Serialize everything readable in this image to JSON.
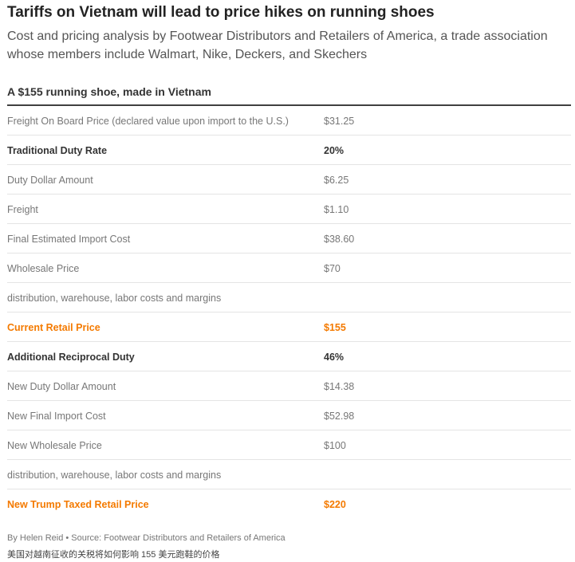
{
  "header": {
    "title": "Tariffs on Vietnam will lead to price hikes on running shoes",
    "subtitle": "Cost and pricing analysis by Footwear Distributors and Retailers of America, a trade association whose members include Walmart, Nike, Deckers, and Skechers"
  },
  "table": {
    "title": "A $155 running shoe, made in Vietnam",
    "accent_color": "#f47a00",
    "rows": [
      {
        "label": "Freight On Board Price (declared value upon import to the U.S.)",
        "value": "$31.25",
        "style": "normal"
      },
      {
        "label": "Traditional Duty Rate",
        "value": "20%",
        "style": "bold"
      },
      {
        "label": "Duty Dollar Amount",
        "value": "$6.25",
        "style": "normal"
      },
      {
        "label": "Freight",
        "value": "$1.10",
        "style": "normal"
      },
      {
        "label": "Final Estimated Import Cost",
        "value": "$38.60",
        "style": "normal"
      },
      {
        "label": "Wholesale Price",
        "value": "$70",
        "style": "normal"
      },
      {
        "label": "distribution, warehouse, labor costs and margins",
        "value": "",
        "style": "normal"
      },
      {
        "label": "Current Retail Price",
        "value": "$155",
        "style": "accent"
      },
      {
        "label": "Additional Reciprocal Duty",
        "value": "46%",
        "style": "bold"
      },
      {
        "label": "New Duty Dollar Amount",
        "value": "$14.38",
        "style": "normal"
      },
      {
        "label": "New Final Import Cost",
        "value": "$52.98",
        "style": "normal"
      },
      {
        "label": "New Wholesale Price",
        "value": "$100",
        "style": "normal"
      },
      {
        "label": "distribution, warehouse, labor costs and margins",
        "value": "",
        "style": "normal"
      },
      {
        "label": "New Trump Taxed Retail Price",
        "value": "$220",
        "style": "accent"
      }
    ]
  },
  "footer": {
    "credit": "By Helen Reid • Source: Footwear Distributors and Retailers of America",
    "caption": "美国对越南征收的关税将如何影响 155 美元跑鞋的价格"
  }
}
